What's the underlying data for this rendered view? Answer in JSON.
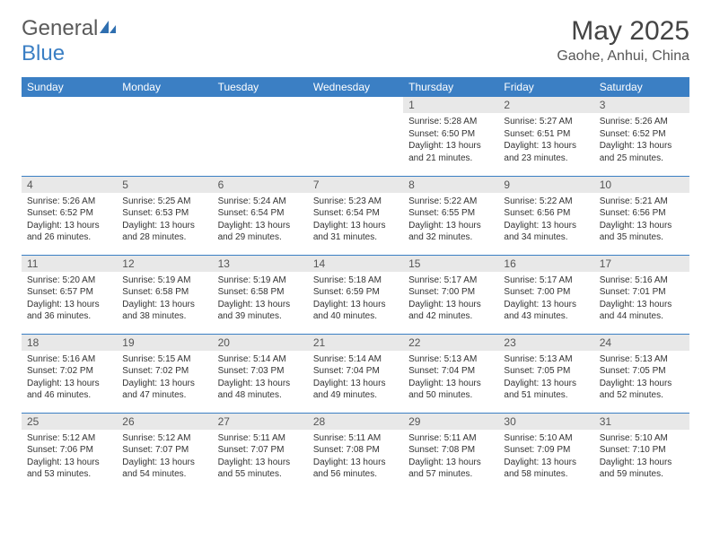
{
  "logo": {
    "textGray": "General",
    "textBlue": "Blue"
  },
  "title": "May 2025",
  "location": "Gaohe, Anhui, China",
  "colors": {
    "headerBg": "#3b7fc4",
    "headerText": "#ffffff",
    "dayNumBg": "#e8e8e8",
    "borderColor": "#3b7fc4",
    "bodyText": "#333333"
  },
  "typography": {
    "titleSize": 30,
    "locationSize": 16,
    "dayHeaderSize": 12,
    "dayNumSize": 12,
    "bodySize": 10
  },
  "dayHeaders": [
    "Sunday",
    "Monday",
    "Tuesday",
    "Wednesday",
    "Thursday",
    "Friday",
    "Saturday"
  ],
  "weeks": [
    [
      null,
      null,
      null,
      null,
      {
        "n": "1",
        "sr": "5:28 AM",
        "ss": "6:50 PM",
        "dl": "13 hours and 21 minutes."
      },
      {
        "n": "2",
        "sr": "5:27 AM",
        "ss": "6:51 PM",
        "dl": "13 hours and 23 minutes."
      },
      {
        "n": "3",
        "sr": "5:26 AM",
        "ss": "6:52 PM",
        "dl": "13 hours and 25 minutes."
      }
    ],
    [
      {
        "n": "4",
        "sr": "5:26 AM",
        "ss": "6:52 PM",
        "dl": "13 hours and 26 minutes."
      },
      {
        "n": "5",
        "sr": "5:25 AM",
        "ss": "6:53 PM",
        "dl": "13 hours and 28 minutes."
      },
      {
        "n": "6",
        "sr": "5:24 AM",
        "ss": "6:54 PM",
        "dl": "13 hours and 29 minutes."
      },
      {
        "n": "7",
        "sr": "5:23 AM",
        "ss": "6:54 PM",
        "dl": "13 hours and 31 minutes."
      },
      {
        "n": "8",
        "sr": "5:22 AM",
        "ss": "6:55 PM",
        "dl": "13 hours and 32 minutes."
      },
      {
        "n": "9",
        "sr": "5:22 AM",
        "ss": "6:56 PM",
        "dl": "13 hours and 34 minutes."
      },
      {
        "n": "10",
        "sr": "5:21 AM",
        "ss": "6:56 PM",
        "dl": "13 hours and 35 minutes."
      }
    ],
    [
      {
        "n": "11",
        "sr": "5:20 AM",
        "ss": "6:57 PM",
        "dl": "13 hours and 36 minutes."
      },
      {
        "n": "12",
        "sr": "5:19 AM",
        "ss": "6:58 PM",
        "dl": "13 hours and 38 minutes."
      },
      {
        "n": "13",
        "sr": "5:19 AM",
        "ss": "6:58 PM",
        "dl": "13 hours and 39 minutes."
      },
      {
        "n": "14",
        "sr": "5:18 AM",
        "ss": "6:59 PM",
        "dl": "13 hours and 40 minutes."
      },
      {
        "n": "15",
        "sr": "5:17 AM",
        "ss": "7:00 PM",
        "dl": "13 hours and 42 minutes."
      },
      {
        "n": "16",
        "sr": "5:17 AM",
        "ss": "7:00 PM",
        "dl": "13 hours and 43 minutes."
      },
      {
        "n": "17",
        "sr": "5:16 AM",
        "ss": "7:01 PM",
        "dl": "13 hours and 44 minutes."
      }
    ],
    [
      {
        "n": "18",
        "sr": "5:16 AM",
        "ss": "7:02 PM",
        "dl": "13 hours and 46 minutes."
      },
      {
        "n": "19",
        "sr": "5:15 AM",
        "ss": "7:02 PM",
        "dl": "13 hours and 47 minutes."
      },
      {
        "n": "20",
        "sr": "5:14 AM",
        "ss": "7:03 PM",
        "dl": "13 hours and 48 minutes."
      },
      {
        "n": "21",
        "sr": "5:14 AM",
        "ss": "7:04 PM",
        "dl": "13 hours and 49 minutes."
      },
      {
        "n": "22",
        "sr": "5:13 AM",
        "ss": "7:04 PM",
        "dl": "13 hours and 50 minutes."
      },
      {
        "n": "23",
        "sr": "5:13 AM",
        "ss": "7:05 PM",
        "dl": "13 hours and 51 minutes."
      },
      {
        "n": "24",
        "sr": "5:13 AM",
        "ss": "7:05 PM",
        "dl": "13 hours and 52 minutes."
      }
    ],
    [
      {
        "n": "25",
        "sr": "5:12 AM",
        "ss": "7:06 PM",
        "dl": "13 hours and 53 minutes."
      },
      {
        "n": "26",
        "sr": "5:12 AM",
        "ss": "7:07 PM",
        "dl": "13 hours and 54 minutes."
      },
      {
        "n": "27",
        "sr": "5:11 AM",
        "ss": "7:07 PM",
        "dl": "13 hours and 55 minutes."
      },
      {
        "n": "28",
        "sr": "5:11 AM",
        "ss": "7:08 PM",
        "dl": "13 hours and 56 minutes."
      },
      {
        "n": "29",
        "sr": "5:11 AM",
        "ss": "7:08 PM",
        "dl": "13 hours and 57 minutes."
      },
      {
        "n": "30",
        "sr": "5:10 AM",
        "ss": "7:09 PM",
        "dl": "13 hours and 58 minutes."
      },
      {
        "n": "31",
        "sr": "5:10 AM",
        "ss": "7:10 PM",
        "dl": "13 hours and 59 minutes."
      }
    ]
  ],
  "labels": {
    "sunrise": "Sunrise:",
    "sunset": "Sunset:",
    "daylight": "Daylight:"
  }
}
